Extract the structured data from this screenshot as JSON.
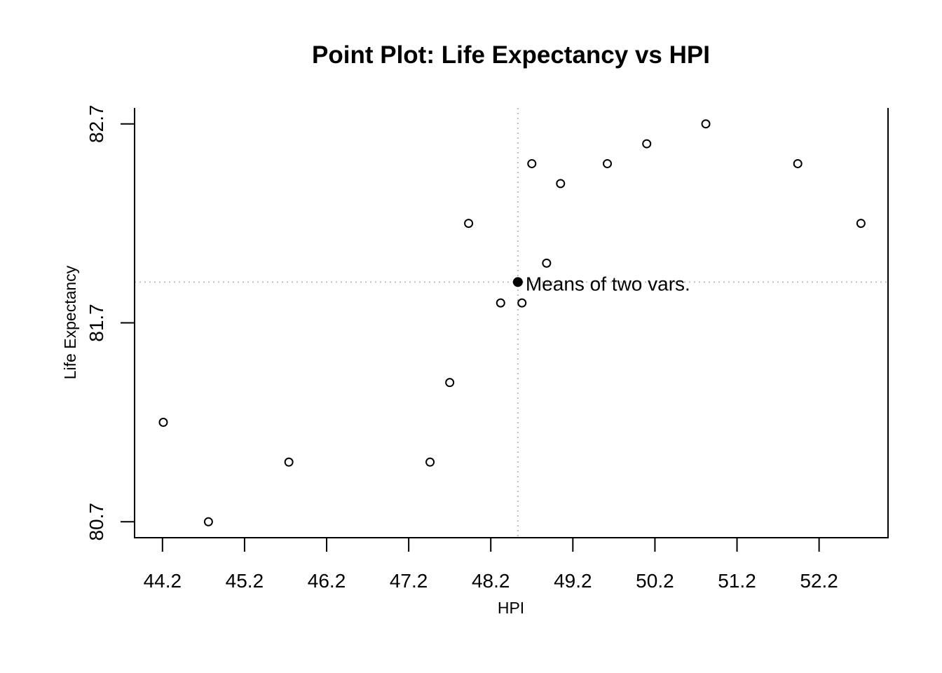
{
  "chart_data": {
    "type": "scatter",
    "title": "Point Plot: Life Expectancy vs HPI",
    "xlabel": "HPI",
    "ylabel": "Life Expectancy",
    "xlim": [
      43.86,
      53.04
    ],
    "ylim": [
      80.62,
      82.78
    ],
    "xticks": [
      44.2,
      45.2,
      46.2,
      47.2,
      48.2,
      49.2,
      50.2,
      51.2,
      52.2
    ],
    "xtick_labels": [
      "44.2",
      "45.2",
      "46.2",
      "47.2",
      "48.2",
      "49.2",
      "50.2",
      "51.2",
      "52.2"
    ],
    "yticks": [
      80.7,
      81.7,
      82.7
    ],
    "ytick_labels": [
      "80.7",
      "81.7",
      "82.7"
    ],
    "grid": false,
    "points": [
      {
        "x": 44.21,
        "y": 81.2
      },
      {
        "x": 44.76,
        "y": 80.7
      },
      {
        "x": 45.74,
        "y": 81.0
      },
      {
        "x": 47.46,
        "y": 81.0
      },
      {
        "x": 47.7,
        "y": 81.4
      },
      {
        "x": 47.93,
        "y": 82.2
      },
      {
        "x": 48.32,
        "y": 81.8
      },
      {
        "x": 48.58,
        "y": 81.8
      },
      {
        "x": 48.7,
        "y": 82.5
      },
      {
        "x": 48.88,
        "y": 82.0
      },
      {
        "x": 49.05,
        "y": 82.4
      },
      {
        "x": 49.62,
        "y": 82.5
      },
      {
        "x": 50.1,
        "y": 82.6
      },
      {
        "x": 50.82,
        "y": 82.7
      },
      {
        "x": 51.94,
        "y": 82.5
      },
      {
        "x": 52.71,
        "y": 82.2
      }
    ],
    "mean_point": {
      "x": 48.53,
      "y": 81.905,
      "label": "Means of two vars."
    },
    "colors": {
      "points": "#000000",
      "guide_lines": "#bebebe"
    }
  }
}
